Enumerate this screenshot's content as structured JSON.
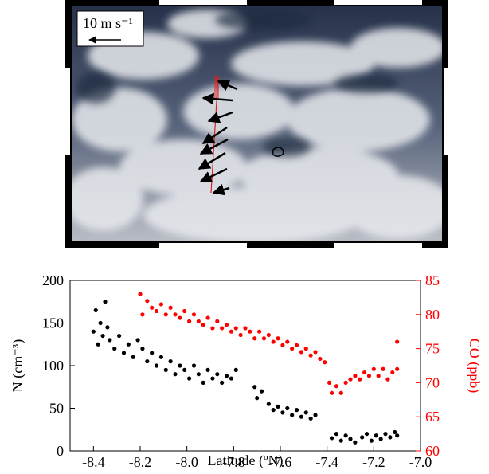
{
  "image": {
    "scale_label": "10 m s⁻¹"
  },
  "chart_data": {
    "type": "scatter",
    "xlabel": "Latitude (ºN)",
    "ylabel": "N (cm⁻³)",
    "y2label": "CO (ppb)",
    "xlim": [
      -8.5,
      -7.0
    ],
    "xticks": [
      -8.4,
      -8.2,
      {
        "value": -8,
        "label": "-8.0"
      },
      -7.8,
      -7.6,
      -7.4,
      -7.2,
      {
        "value": -7,
        "label": "-7.0"
      }
    ],
    "ylim": [
      0,
      200
    ],
    "yticks": [
      0,
      50,
      100,
      150,
      200
    ],
    "y2lim": [
      60,
      85
    ],
    "y2ticks": [
      60,
      65,
      70,
      75,
      80,
      85
    ],
    "series": [
      {
        "color": "#000000",
        "x": [
          -8.4,
          -8.39,
          -8.38,
          -8.37,
          -8.36,
          -8.35,
          -8.34,
          -8.33,
          -8.31,
          -8.29,
          -8.27,
          -8.25,
          -8.23,
          -8.21,
          -8.19,
          -8.17,
          -8.15,
          -8.13,
          -8.11,
          -8.09,
          -8.07,
          -8.05,
          -8.03,
          -8.01,
          -7.99,
          -7.97,
          -7.95,
          -7.93,
          -7.91,
          -7.89,
          -7.87,
          -7.85,
          -7.83,
          -7.81,
          -7.79,
          -7.71,
          -7.7,
          -7.68,
          -7.65,
          -7.63,
          -7.61,
          -7.59,
          -7.57,
          -7.55,
          -7.53,
          -7.51,
          -7.49,
          -7.47,
          -7.45,
          -7.38,
          -7.36,
          -7.34,
          -7.32,
          -7.3,
          -7.28,
          -7.25,
          -7.23,
          -7.21,
          -7.19,
          -7.17,
          -7.15,
          -7.13,
          -7.11,
          -7.1
        ],
        "values": [
          140,
          165,
          125,
          150,
          135,
          175,
          145,
          130,
          120,
          135,
          115,
          125,
          110,
          130,
          120,
          105,
          115,
          100,
          110,
          95,
          105,
          90,
          100,
          95,
          85,
          100,
          90,
          80,
          95,
          85,
          90,
          80,
          88,
          85,
          95,
          75,
          62,
          70,
          55,
          48,
          52,
          45,
          50,
          42,
          48,
          40,
          45,
          38,
          42,
          15,
          20,
          12,
          18,
          14,
          10,
          16,
          20,
          12,
          18,
          14,
          20,
          16,
          22,
          18
        ]
      },
      {
        "color": "#ff0000",
        "axis": "y2",
        "x": [
          -8.2,
          -8.19,
          -8.17,
          -8.15,
          -8.13,
          -8.11,
          -8.09,
          -8.07,
          -8.05,
          -8.03,
          -8.01,
          -7.99,
          -7.97,
          -7.95,
          -7.93,
          -7.91,
          -7.89,
          -7.87,
          -7.85,
          -7.83,
          -7.81,
          -7.79,
          -7.77,
          -7.75,
          -7.73,
          -7.71,
          -7.69,
          -7.67,
          -7.65,
          -7.63,
          -7.61,
          -7.59,
          -7.57,
          -7.55,
          -7.53,
          -7.51,
          -7.49,
          -7.47,
          -7.45,
          -7.43,
          -7.41,
          -7.39,
          -7.38,
          -7.36,
          -7.34,
          -7.32,
          -7.3,
          -7.28,
          -7.26,
          -7.24,
          -7.22,
          -7.2,
          -7.18,
          -7.16,
          -7.14,
          -7.12,
          -7.1,
          -7.1
        ],
        "values": [
          83,
          80,
          82,
          81,
          80.5,
          81.5,
          80,
          81,
          80,
          79.5,
          80.5,
          79,
          80,
          79,
          78.5,
          79.5,
          78,
          79,
          78,
          78.5,
          77.5,
          78,
          77,
          78,
          77.5,
          76.5,
          77.5,
          76.5,
          77,
          76,
          76.5,
          75.5,
          76,
          75,
          75.5,
          74.5,
          75,
          74,
          74.5,
          73.5,
          73,
          70,
          68.5,
          69.5,
          68.5,
          70,
          70.5,
          71,
          70.5,
          71.5,
          71,
          72,
          71,
          72,
          70.5,
          71.5,
          72,
          76
        ]
      }
    ]
  }
}
